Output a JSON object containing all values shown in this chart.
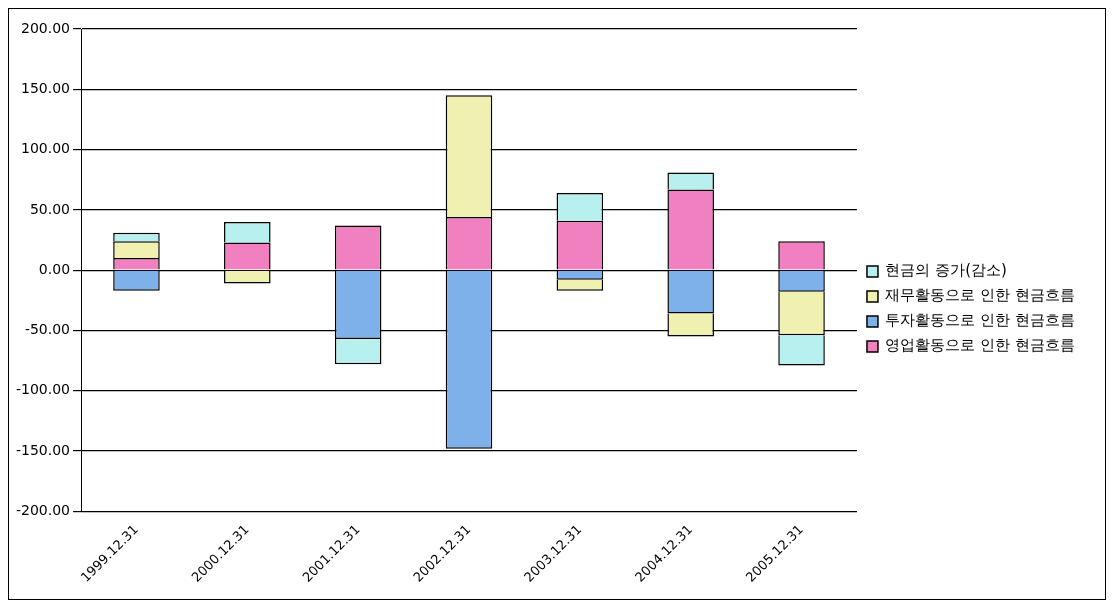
{
  "chart_data": {
    "type": "bar",
    "stacked": true,
    "categories": [
      "1999.12.31",
      "2000.12.31",
      "2001.12.31",
      "2002.12.31",
      "2003.12.31",
      "2004.12.31",
      "2005.12.31"
    ],
    "series": [
      {
        "name": "영업활동으로 인한 현금흐름",
        "color": "#f080c0",
        "values": [
          10,
          23,
          37,
          44,
          41,
          67,
          24
        ]
      },
      {
        "name": "투자활동으로 인한 현금흐름",
        "color": "#7eb0ea",
        "values": [
          -17,
          0,
          -57,
          -148,
          -8,
          -36,
          -18
        ]
      },
      {
        "name": "재무활동으로 인한 현금흐름",
        "color": "#f0f0b0",
        "values": [
          14,
          -11,
          0,
          101,
          -9,
          -19,
          -36
        ]
      },
      {
        "name": "현금의 증가(감소)",
        "color": "#b8f0f0",
        "values": [
          7,
          17,
          -21,
          0,
          23,
          14,
          -25
        ]
      }
    ],
    "ylim": [
      -200,
      200
    ],
    "yticks": [
      {
        "value": -200,
        "label": "-200.00"
      },
      {
        "value": -150,
        "label": "-150.00"
      },
      {
        "value": -100,
        "label": "-100.00"
      },
      {
        "value": -50,
        "label": "-50.00"
      },
      {
        "value": 0,
        "label": "0.00"
      },
      {
        "value": 50,
        "label": "50.00"
      },
      {
        "value": 100,
        "label": "100.00"
      },
      {
        "value": 150,
        "label": "150.00"
      },
      {
        "value": 200,
        "label": "200.00"
      }
    ],
    "grid": "y",
    "legend": "right"
  }
}
